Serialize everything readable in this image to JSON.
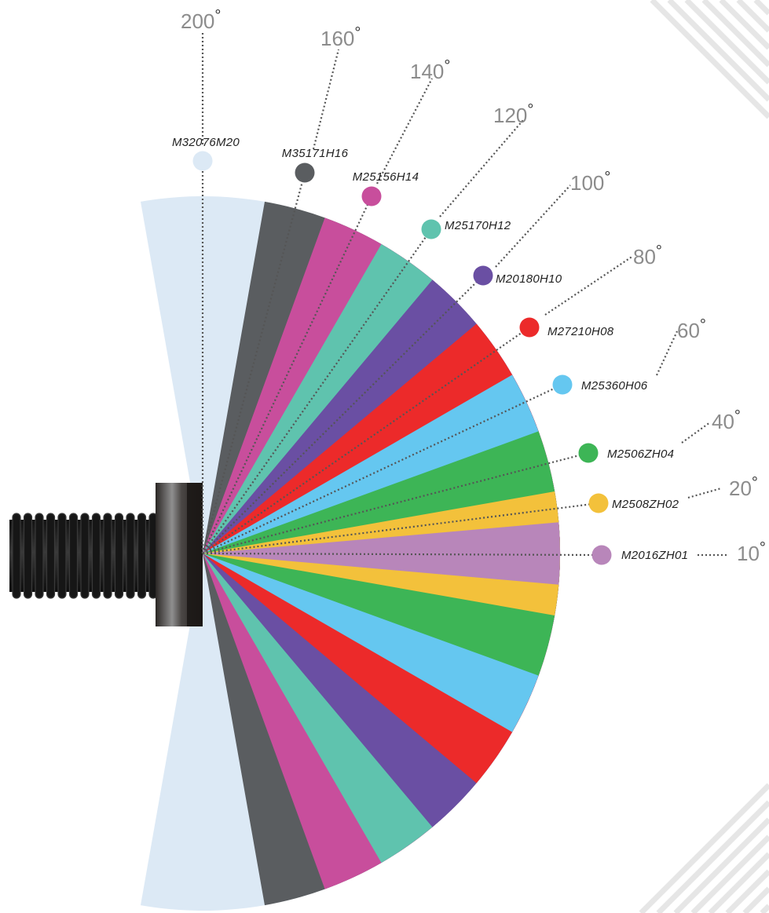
{
  "deg_sign": "°",
  "hinges": [
    {
      "code": "M2016ZH01",
      "angle_value": "10",
      "color": "#b886ba"
    },
    {
      "code": "M2508ZH02",
      "angle_value": "20",
      "color": "#f3c13b"
    },
    {
      "code": "M2506ZH04",
      "angle_value": "40",
      "color": "#3db556"
    },
    {
      "code": "M25360H06",
      "angle_value": "60",
      "color": "#65c7f0"
    },
    {
      "code": "M27210H08",
      "angle_value": "80",
      "color": "#ec2a2a"
    },
    {
      "code": "M20180H10",
      "angle_value": "100",
      "color": "#6a4fa3"
    },
    {
      "code": "M25170H12",
      "angle_value": "120",
      "color": "#5fc3ae"
    },
    {
      "code": "M25156H14",
      "angle_value": "140",
      "color": "#c84e9c"
    },
    {
      "code": "M35171H16",
      "angle_value": "160",
      "color": "#5a5d60"
    },
    {
      "code": "M32076M20",
      "angle_value": "200",
      "color": "#dce9f5"
    }
  ],
  "icons": {
    "hinge_body": "hinge-cylinder-icon",
    "decoration": "diagonal-stripes"
  }
}
